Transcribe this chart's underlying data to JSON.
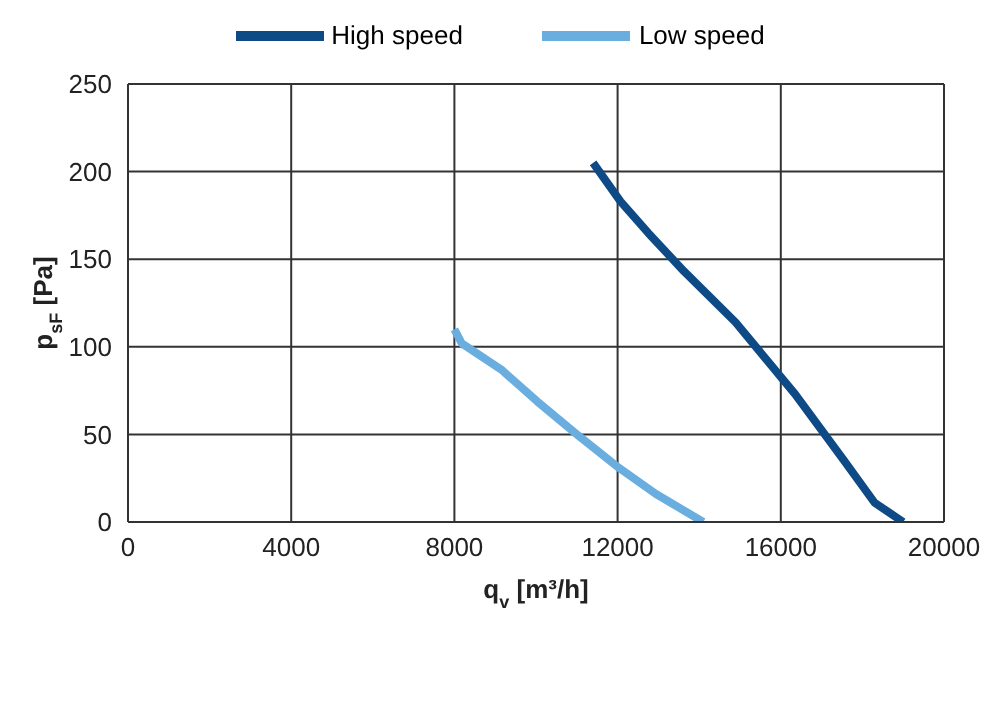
{
  "chart_data": {
    "type": "line",
    "xlabel": "q$_{v}$ [m³/h]",
    "ylabel": "p$_{sF}$ [Pa]",
    "xlim": [
      0,
      20000
    ],
    "xticks": [
      0,
      4000,
      8000,
      12000,
      16000,
      20000
    ],
    "ylim": [
      0,
      250
    ],
    "yticks": [
      0,
      50,
      100,
      150,
      200,
      250
    ],
    "grid": true,
    "legend": "top",
    "marker": "none",
    "line_style": "solid",
    "series": [
      {
        "name": "High speed",
        "color": "#0d4a86",
        "x": [
          11400,
          12070,
          12750,
          13630,
          14890,
          16350,
          17520,
          18300,
          19000
        ],
        "values": [
          205,
          183,
          165,
          143,
          114,
          73,
          36,
          11,
          0
        ]
      },
      {
        "name": "Low speed",
        "color": "#6aaee0",
        "x": [
          8000,
          8180,
          9150,
          10020,
          11000,
          11970,
          12940,
          14100
        ],
        "values": [
          110,
          102,
          87,
          69,
          50,
          32,
          16,
          0
        ]
      }
    ]
  }
}
